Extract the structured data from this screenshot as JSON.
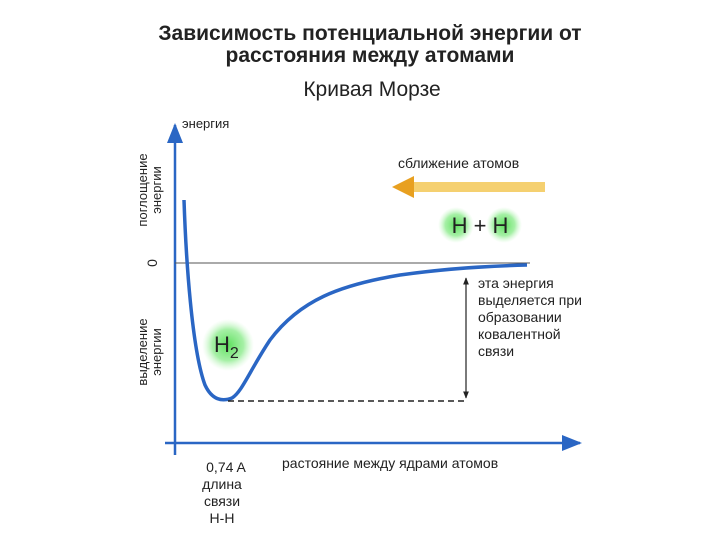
{
  "title": [
    "Зависимость потенциальной энергии от",
    "расстояния между атомами"
  ],
  "subtitle": "Кривая Морзе",
  "axes": {
    "y_label": "энергия",
    "absorption": [
      "поглощение",
      "энергии"
    ],
    "zero": "0",
    "release": [
      "выделение",
      "энергии"
    ],
    "x_label": "растояние между ядрами атомов"
  },
  "annotations": {
    "approach": "сближение атомов",
    "separate_atoms": "H + H",
    "molecule": {
      "base": "H",
      "sub": "2"
    },
    "energy_note": [
      "эта энергия",
      "выделяется при",
      "образовании",
      "ковалентной",
      "связи"
    ],
    "bond_length": [
      "0,74 A",
      "длина",
      "связи",
      "H-H"
    ]
  }
}
